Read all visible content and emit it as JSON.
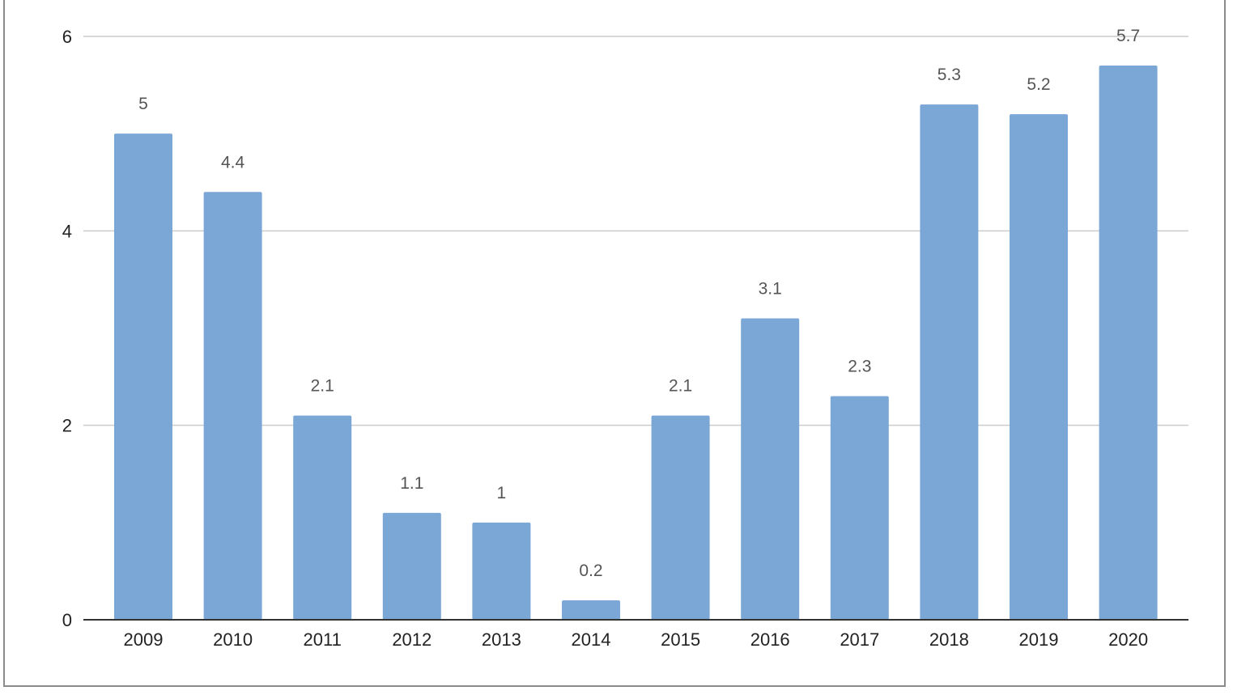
{
  "chart_data": {
    "type": "bar",
    "title": "",
    "xlabel": "",
    "ylabel": "",
    "categories": [
      "2009",
      "2010",
      "2011",
      "2012",
      "2013",
      "2014",
      "2015",
      "2016",
      "2017",
      "2018",
      "2019",
      "2020"
    ],
    "series": [
      {
        "values": [
          5,
          4.4,
          2.1,
          1.1,
          1,
          0.2,
          2.1,
          3.1,
          2.3,
          5.3,
          5.2,
          5.7
        ],
        "color": "#7ba7d7"
      }
    ],
    "ylim": [
      0,
      6
    ],
    "yticks": [
      "0",
      "2",
      "4",
      "6"
    ],
    "data_labels": [
      "5",
      "4.4",
      "2.1",
      "1.1",
      "1",
      "0.2",
      "2.1",
      "3.1",
      "2.3",
      "5.3",
      "5.2",
      "5.7"
    ],
    "grid": true,
    "legend": "none",
    "colors": {
      "bar": "#7ba7d7",
      "gridline": "#cccccc",
      "axis": "#333333",
      "tick_label": "#222222",
      "data_label": "#555555"
    }
  }
}
